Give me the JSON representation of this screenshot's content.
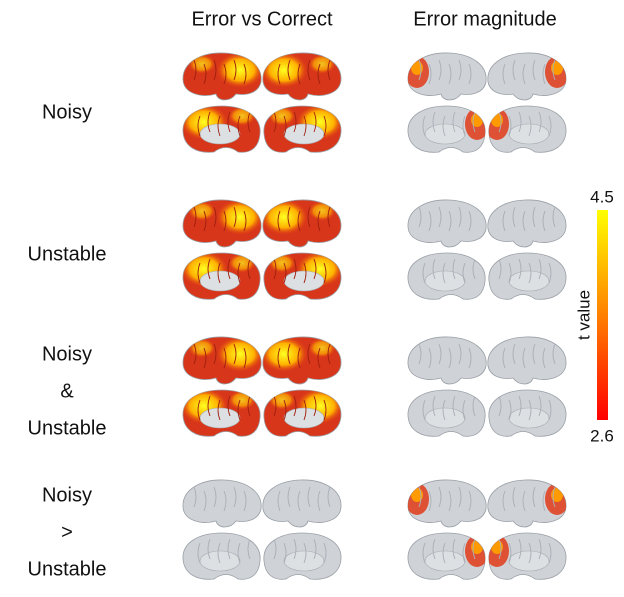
{
  "columns": [
    "Error vs Correct",
    "Error magnitude"
  ],
  "rows": [
    {
      "label_lines": [
        "Noisy"
      ]
    },
    {
      "label_lines": [
        "Unstable"
      ]
    },
    {
      "label_lines": [
        "Noisy",
        "&",
        "Unstable"
      ]
    },
    {
      "label_lines": [
        "Noisy",
        ">",
        "Unstable"
      ]
    }
  ],
  "colorbar": {
    "label": "t value",
    "max": "4.5",
    "min": "2.6"
  }
}
